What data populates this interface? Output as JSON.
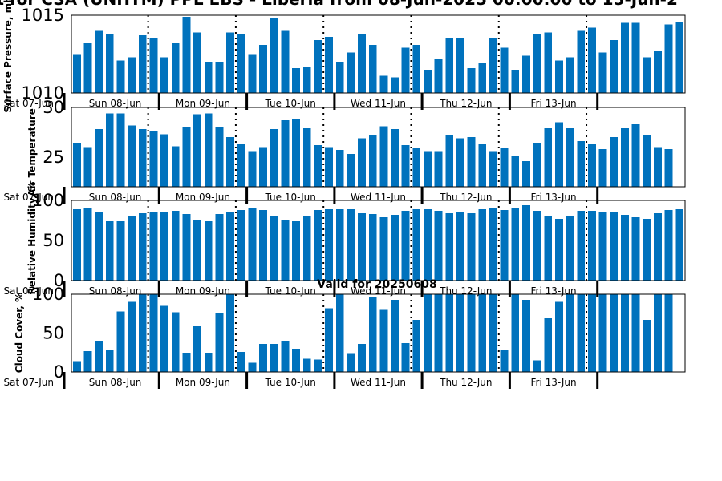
{
  "figure": {
    "title": "ast for CSA (UNHTM) PPL EBS  - Liberia from 08-Jun-2025 00:00:00 to 15-Jun-2",
    "subtitle": "Valid for 20250608",
    "bar_color": "#0072BD"
  },
  "chart_data": [
    {
      "type": "bar",
      "ylabel": "Surface Pressure, mb",
      "ylim": [
        1010,
        1015
      ],
      "yticks": [
        1010,
        1015
      ],
      "x_tick_labels": [
        "Sat 07-Jun",
        "Sun 08-Jun",
        "Mon 09-Jun",
        "Tue 10-Jun",
        "Wed 11-Jun",
        "Thu 12-Jun",
        "Fri 13-Jun"
      ],
      "grid": false,
      "values": [
        1012.5,
        1013.2,
        1014.0,
        1013.8,
        1012.1,
        1012.3,
        1013.7,
        1013.5,
        1012.3,
        1013.2,
        1014.9,
        1013.9,
        1012.0,
        1012.0,
        1013.9,
        1013.8,
        1012.5,
        1013.1,
        1014.8,
        1014.0,
        1011.6,
        1011.7,
        1013.4,
        1013.6,
        1012.0,
        1012.6,
        1013.8,
        1013.1,
        1011.1,
        1011.0,
        1012.9,
        1013.1,
        1011.5,
        1012.2,
        1013.5,
        1013.5,
        1011.6,
        1011.9,
        1013.5,
        1012.9,
        1011.5,
        1012.4,
        1013.8,
        1013.9,
        1012.1,
        1012.3,
        1014.0,
        1014.2,
        1012.6,
        1013.4,
        1014.5,
        1014.5,
        1012.3,
        1012.7,
        1014.4,
        1014.6
      ]
    },
    {
      "type": "bar",
      "ylabel": "Air Temperature",
      "ylim": [
        22,
        30
      ],
      "yticks": [
        25,
        30
      ],
      "x_tick_labels": [
        "Sat 07-Jun",
        "Sun 08-Jun",
        "Mon 09-Jun",
        "Tue 10-Jun",
        "Wed 11-Jun",
        "Thu 12-Jun",
        "Fri 13-Jun"
      ],
      "grid": false,
      "values": [
        26.4,
        26.0,
        27.8,
        29.4,
        29.4,
        28.2,
        27.8,
        27.6,
        27.3,
        26.1,
        28.0,
        29.3,
        29.4,
        28.0,
        27.0,
        26.3,
        25.6,
        26.0,
        27.8,
        28.7,
        28.8,
        27.9,
        26.2,
        26.0,
        25.7,
        25.3,
        26.9,
        27.2,
        28.1,
        27.8,
        26.2,
        25.9,
        25.6,
        25.6,
        27.2,
        26.9,
        27.0,
        26.3,
        25.6,
        25.9,
        25.1,
        24.6,
        26.4,
        27.9,
        28.5,
        27.9,
        26.6,
        26.3,
        25.8,
        27.0,
        27.9,
        28.3,
        27.2,
        26.0,
        25.8
      ]
    },
    {
      "type": "bar",
      "ylabel": "Relative Humidity, %",
      "ylim": [
        0,
        100
      ],
      "yticks": [
        0,
        50,
        100
      ],
      "x_tick_labels": [
        "Sat 07-Jun",
        "Sun 08-Jun",
        "Mon 09-Jun",
        "Tue 10-Jun",
        "Wed 11-Jun",
        "Thu 12-Jun",
        "Fri 13-Jun"
      ],
      "grid": false,
      "values": [
        89,
        90,
        85,
        74,
        74,
        80,
        84,
        85,
        86,
        87,
        83,
        75,
        74,
        83,
        86,
        88,
        90,
        88,
        81,
        75,
        74,
        80,
        88,
        89,
        89,
        89,
        84,
        83,
        79,
        82,
        87,
        89,
        89,
        87,
        84,
        86,
        84,
        89,
        90,
        88,
        90,
        94,
        87,
        81,
        77,
        80,
        87,
        87,
        85,
        86,
        82,
        79,
        77,
        84,
        88,
        89
      ]
    },
    {
      "type": "bar",
      "ylabel": "Cloud Cover, %",
      "ylim": [
        0,
        100
      ],
      "yticks": [
        0,
        50,
        100
      ],
      "x_tick_labels": [
        "Sat 07-Jun",
        "Sun 08-Jun",
        "Mon 09-Jun",
        "Tue 10-Jun",
        "Wed 11-Jun",
        "Thu 12-Jun",
        "Fri 13-Jun"
      ],
      "grid": false,
      "values": [
        14,
        27,
        40,
        28,
        78,
        90,
        100,
        100,
        85,
        77,
        25,
        59,
        25,
        76,
        100,
        26,
        12,
        36,
        36,
        40,
        30,
        17,
        16,
        82,
        100,
        24,
        36,
        96,
        80,
        93,
        37,
        67,
        100,
        100,
        100,
        100,
        100,
        100,
        100,
        29,
        100,
        93,
        15,
        69,
        90,
        100,
        100,
        100,
        100,
        100,
        100,
        100,
        67,
        100,
        100
      ]
    }
  ]
}
